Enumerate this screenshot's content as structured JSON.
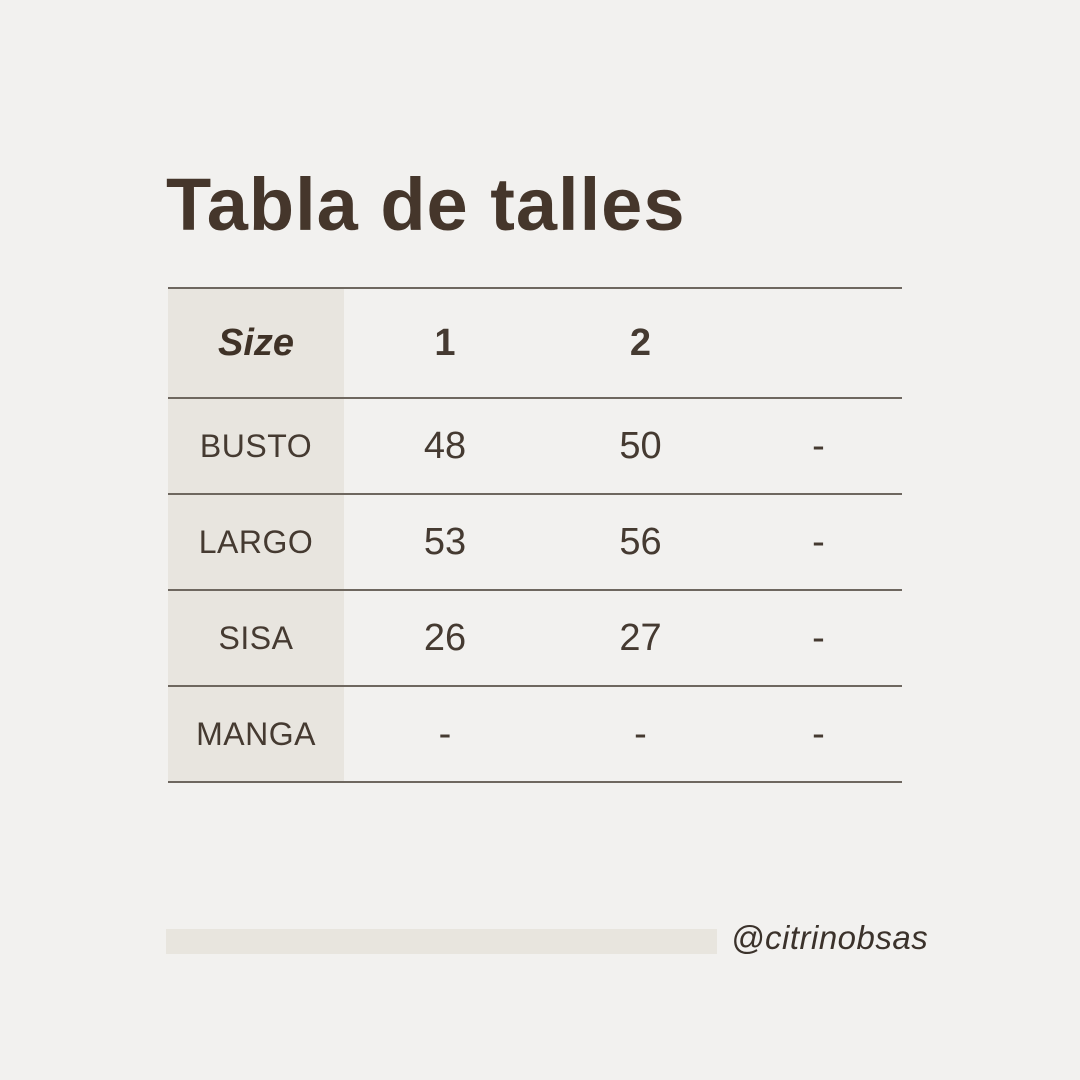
{
  "title": "Tabla de talles",
  "table": {
    "header": {
      "label": "Size",
      "columns": [
        "1",
        "2",
        ""
      ]
    },
    "rows": [
      {
        "label": "BUSTO",
        "values": [
          "48",
          "50",
          "-"
        ]
      },
      {
        "label": "LARGO",
        "values": [
          "53",
          "56",
          "-"
        ]
      },
      {
        "label": "SISA",
        "values": [
          "26",
          "27",
          "-"
        ]
      },
      {
        "label": "MANGA",
        "values": [
          "-",
          "-",
          "-"
        ]
      }
    ]
  },
  "footer": {
    "handle": "@citrinobsas"
  },
  "colors": {
    "background": "#f2f1ef",
    "panel_beige": "#e8e5df",
    "divider": "#6e675f",
    "text_dark": "#43362c"
  },
  "chart_data": {
    "type": "table",
    "title": "Tabla de talles",
    "columns": [
      "Size",
      "1",
      "2",
      ""
    ],
    "rows": [
      [
        "BUSTO",
        "48",
        "50",
        "-"
      ],
      [
        "LARGO",
        "53",
        "56",
        "-"
      ],
      [
        "SISA",
        "26",
        "27",
        "-"
      ],
      [
        "MANGA",
        "-",
        "-",
        "-"
      ]
    ]
  }
}
